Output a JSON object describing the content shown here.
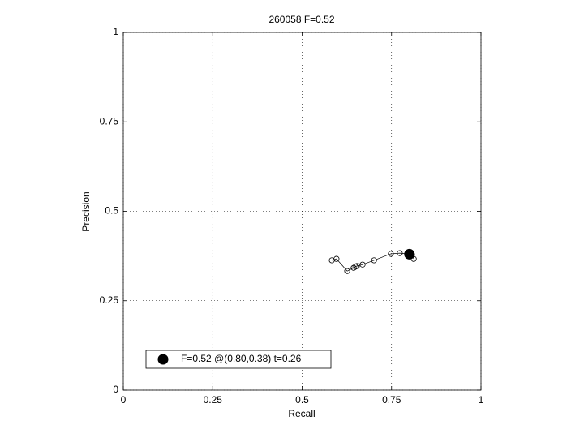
{
  "chart_data": {
    "type": "line",
    "title": "260058 F=0.52",
    "xlabel": "Recall",
    "ylabel": "Precision",
    "xlim": [
      0,
      1
    ],
    "ylim": [
      0,
      1
    ],
    "xticks": [
      0,
      0.25,
      0.5,
      0.75,
      1
    ],
    "yticks": [
      0,
      0.25,
      0.5,
      0.75,
      1
    ],
    "grid": true,
    "legend": "lower left",
    "series": [
      {
        "color": "#000000",
        "marker": "circle",
        "x": [
          0.583,
          0.596,
          0.626,
          0.644,
          0.649,
          0.653,
          0.669,
          0.701,
          0.748,
          0.773,
          0.796,
          0.807,
          0.812
        ],
        "values": [
          0.363,
          0.367,
          0.333,
          0.342,
          0.345,
          0.347,
          0.351,
          0.363,
          0.381,
          0.383,
          0.381,
          0.379,
          0.367
        ]
      },
      {
        "name": "F=0.52 @(0.80,0.38) t=0.26",
        "color": "#000000",
        "marker": "filled-circle",
        "x": [
          0.8
        ],
        "values": [
          0.38
        ]
      }
    ]
  }
}
